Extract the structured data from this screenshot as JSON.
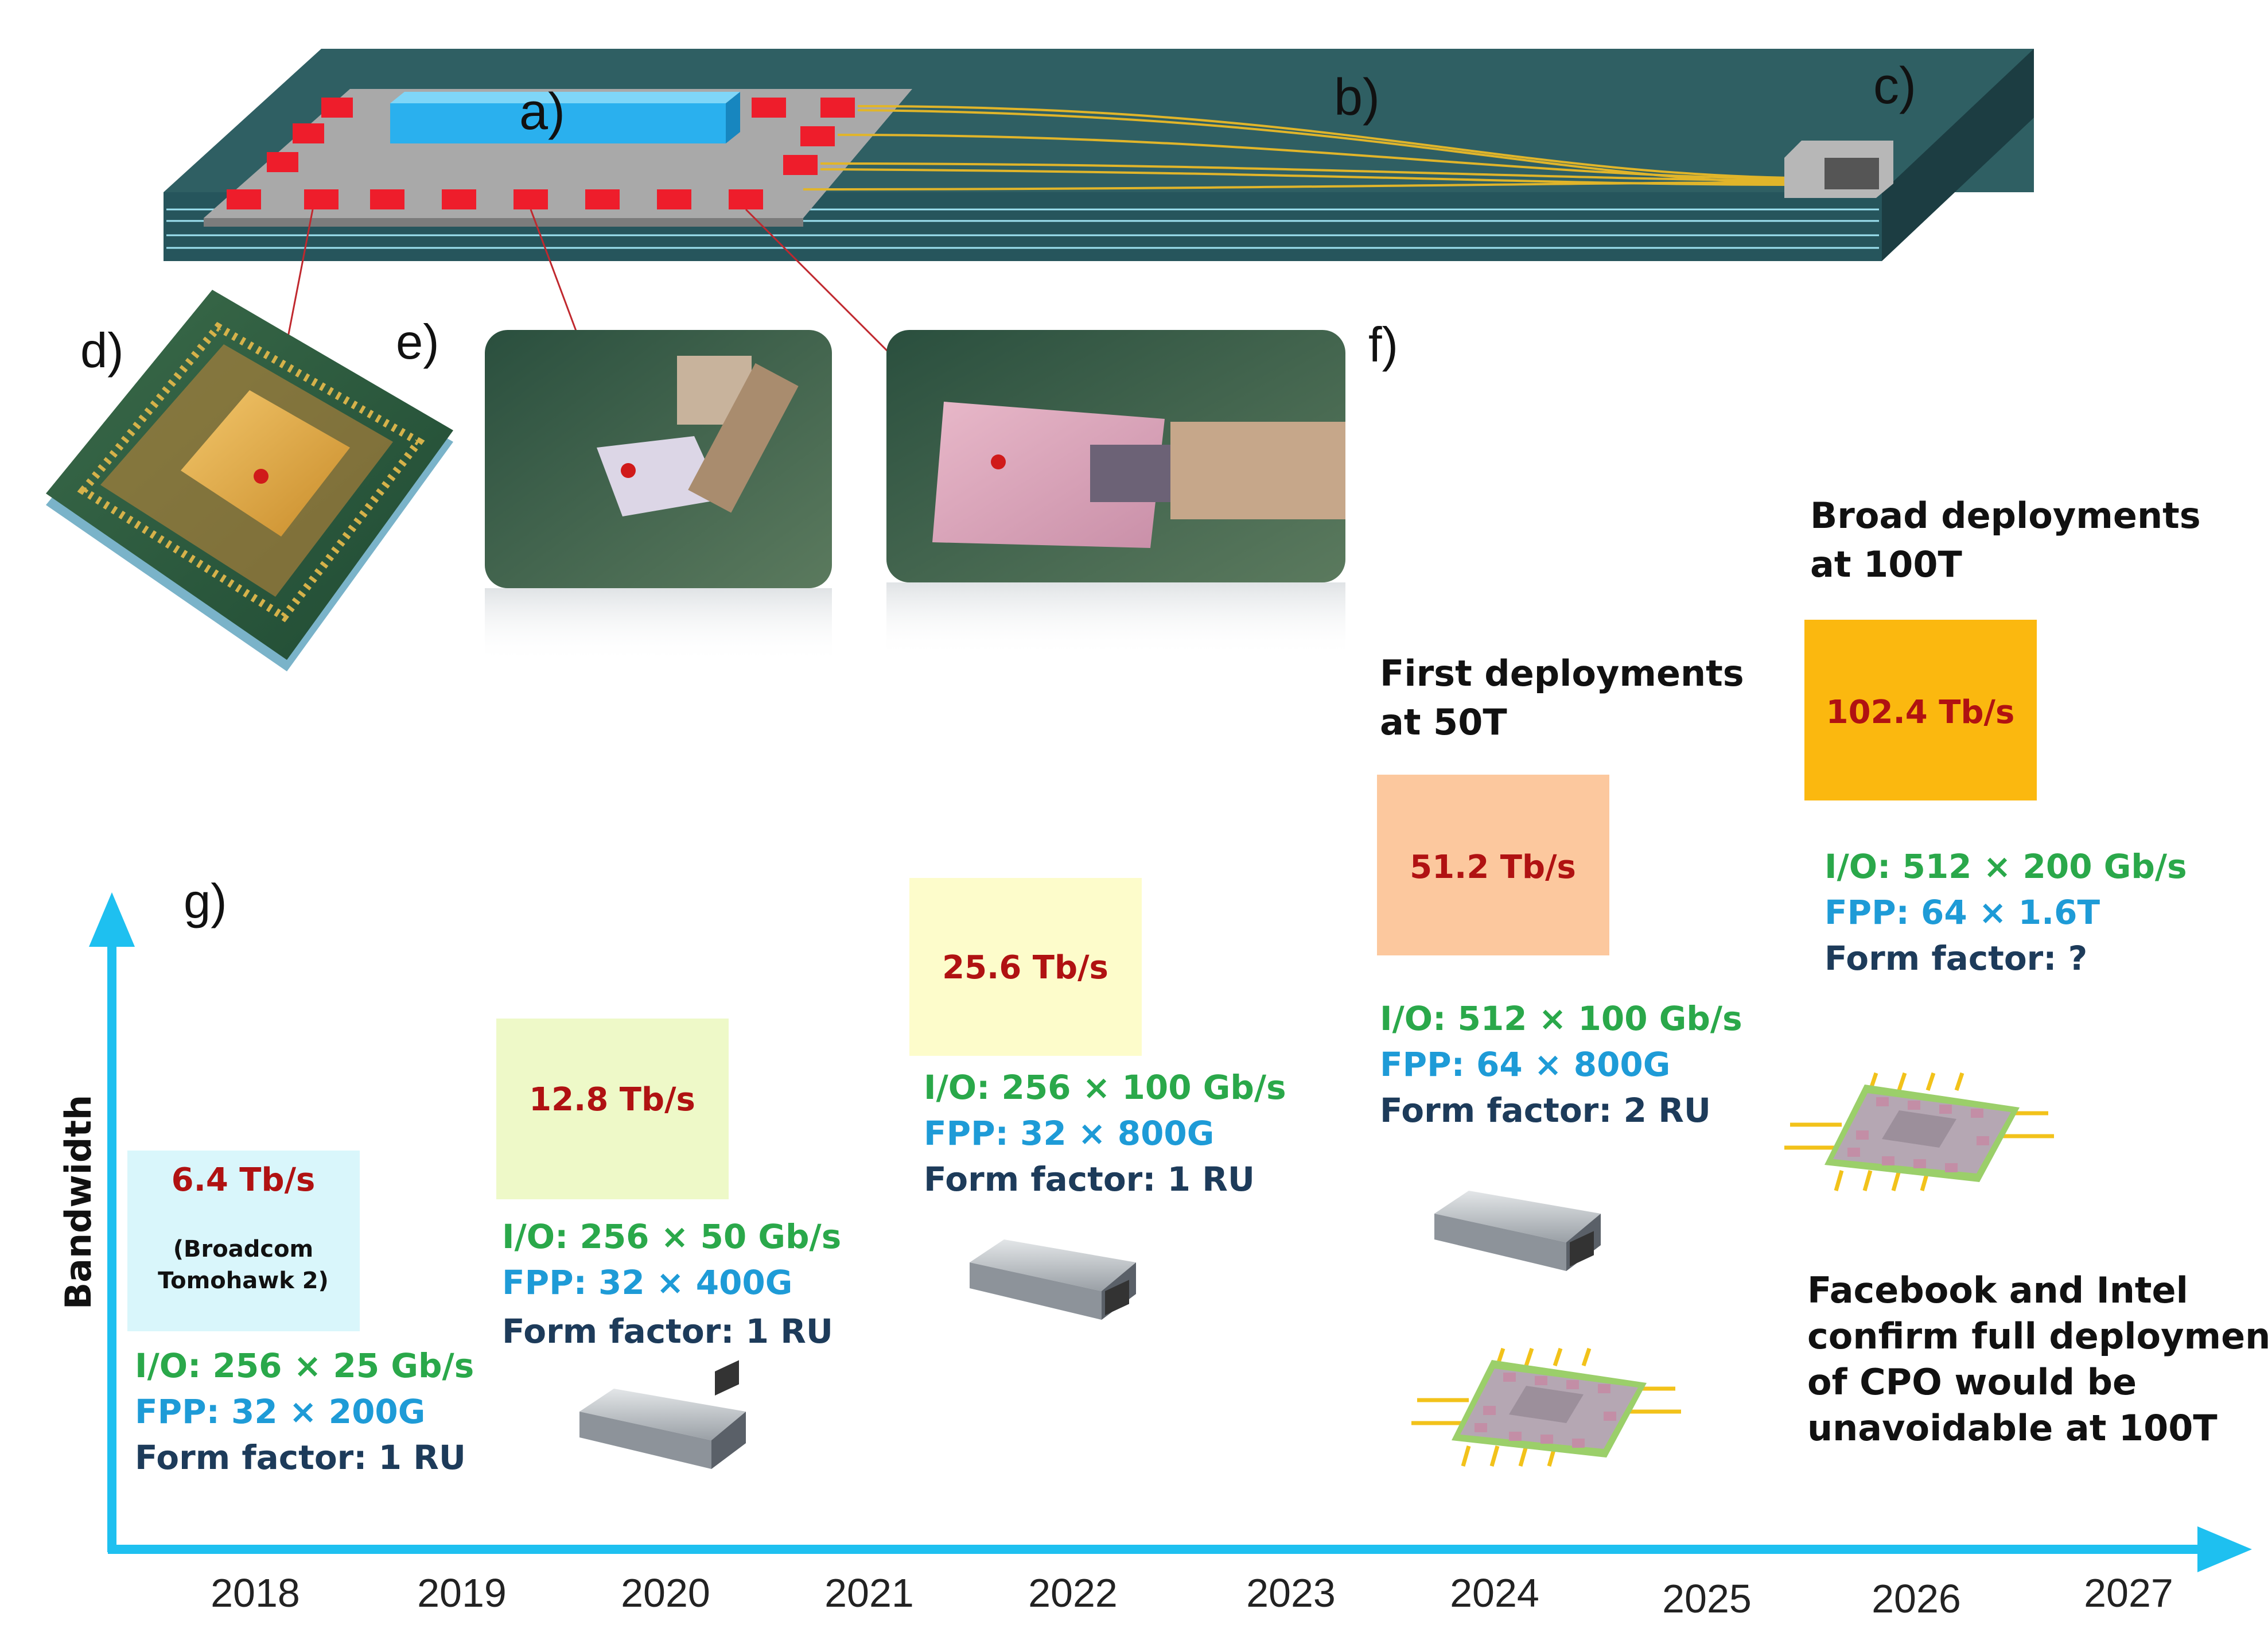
{
  "labels": {
    "a": "a)",
    "b": "b)",
    "c": "c)",
    "d": "d)",
    "e": "e)",
    "f": "f)",
    "g": "g)"
  },
  "axis": {
    "y_label": "Bandwidth"
  },
  "years": [
    "2018",
    "2019",
    "2020",
    "2021",
    "2022",
    "2023",
    "2024",
    "2025",
    "2026",
    "2027"
  ],
  "generations": [
    {
      "year": "2018",
      "bandwidth": "6.4 Tb/s",
      "note_line1": "(Broadcom",
      "note_line2": "Tomohawk 2)",
      "box_color": "#d9f6fb",
      "io": "I/O: 256 × 25 Gb/s",
      "fpp": "FPP: 32 × 200G",
      "form_factor": "Form factor: 1 RU"
    },
    {
      "year": "2020",
      "bandwidth": "12.8 Tb/s",
      "box_color": "#eef9c8",
      "io": "I/O: 256 × 50 Gb/s",
      "fpp": "FPP: 32 × 400G",
      "form_factor": "Form factor: 1 RU"
    },
    {
      "year": "2022",
      "bandwidth": "25.6 Tb/s",
      "box_color": "#fdfccb",
      "io": "I/O: 256 × 100 Gb/s",
      "fpp": "FPP: 32 × 800G",
      "form_factor": "Form factor: 1 RU"
    },
    {
      "year": "2024",
      "bandwidth": "51.2 Tb/s",
      "box_color": "#fcc89e",
      "io": "I/O: 512 × 100 Gb/s",
      "fpp": "FPP: 64 × 800G",
      "form_factor": "Form factor: 2 RU"
    },
    {
      "year": "2026",
      "bandwidth": "102.4 Tb/s",
      "box_color": "#fbb80f",
      "io": "I/O: 512 × 200 Gb/s",
      "fpp": "FPP: 64 × 1.6T",
      "form_factor": "Form factor: ?"
    }
  ],
  "annotations": {
    "first_line1": "First deployments",
    "first_line2": "at 50T",
    "broad_line1": "Broad deployments",
    "broad_line2": "at 100T",
    "cpo_line1": "Facebook and Intel",
    "cpo_line2": "confirm full deployment",
    "cpo_line3": "of CPO would be",
    "cpo_line4": "unavoidable at 100T"
  },
  "colors": {
    "axis": "#1ec0f0",
    "board_top": "#2f5f63",
    "board_side": "#203f44",
    "chip": "#2ab0ee",
    "engine": "#ee1d2b",
    "fiber": "#e1b52a",
    "leader": "#c0282e"
  }
}
